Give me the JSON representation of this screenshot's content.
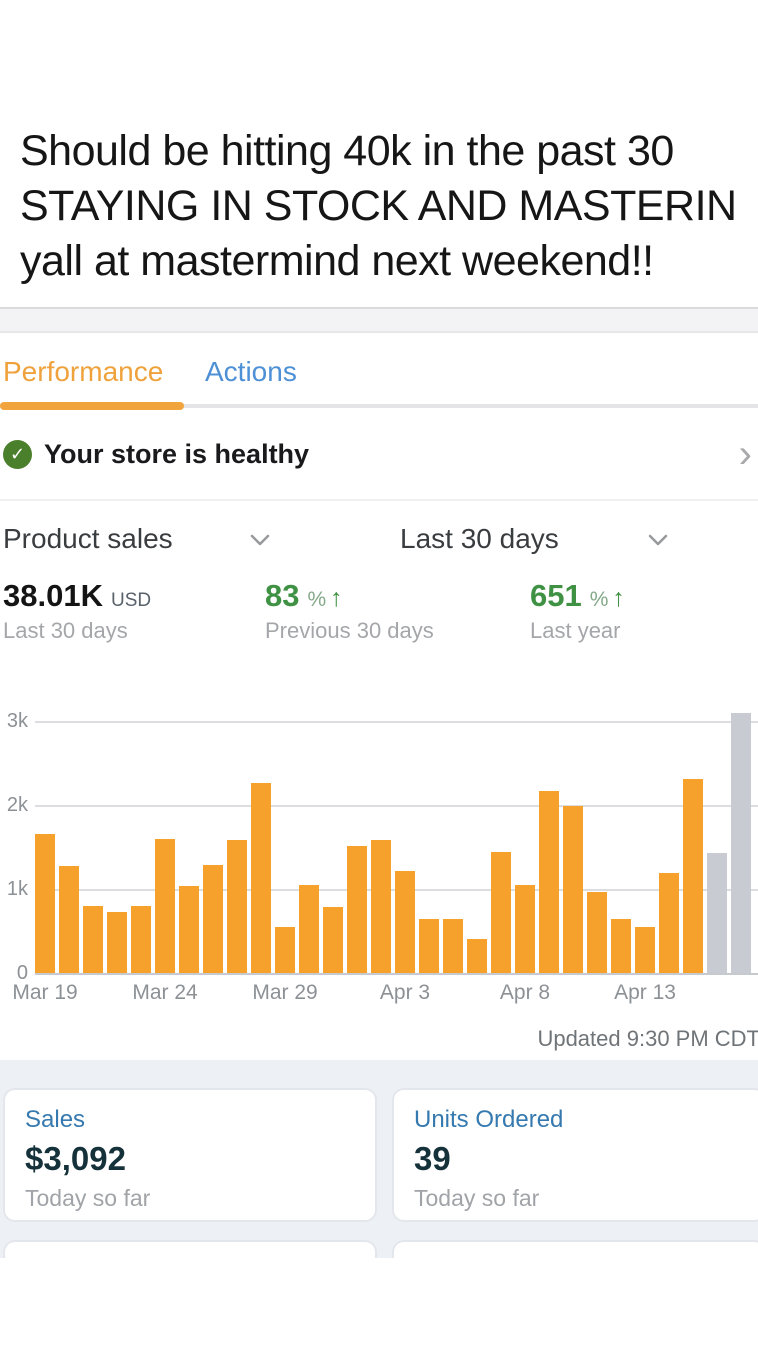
{
  "story": {
    "lines": [
      "Should be hitting 40k in the past 30",
      "STAYING IN STOCK AND MASTERIN",
      "yall at mastermind next weekend!!"
    ]
  },
  "tabs": [
    {
      "label": "Performance",
      "active": true
    },
    {
      "label": "Actions",
      "active": false
    }
  ],
  "health": {
    "label": "Your store is healthy",
    "check_glyph": "✓",
    "chevron_glyph": "›"
  },
  "filters": {
    "metric": "Product sales",
    "range": "Last 30 days"
  },
  "stats": {
    "primary": {
      "value": "38.01K",
      "unit": "USD",
      "caption": "Last 30 days"
    },
    "vs_previous": {
      "value": "83",
      "unit": "%",
      "arrow": "↑",
      "caption": "Previous 30 days"
    },
    "vs_last_year": {
      "value": "651",
      "unit": "%",
      "arrow": "↑",
      "caption": "Last year"
    }
  },
  "chart_data": {
    "type": "bar",
    "title": "Product sales, last 30 days (USD)",
    "x": [
      "Mar 19",
      "Mar 20",
      "Mar 21",
      "Mar 22",
      "Mar 23",
      "Mar 24",
      "Mar 25",
      "Mar 26",
      "Mar 27",
      "Mar 28",
      "Mar 29",
      "Mar 30",
      "Mar 31",
      "Apr 1",
      "Apr 2",
      "Apr 3",
      "Apr 4",
      "Apr 5",
      "Apr 6",
      "Apr 7",
      "Apr 8",
      "Apr 9",
      "Apr 10",
      "Apr 11",
      "Apr 12",
      "Apr 13",
      "Apr 14",
      "Apr 15",
      "Apr 16",
      "Apr 17"
    ],
    "values": [
      1650,
      1270,
      800,
      730,
      800,
      1600,
      1040,
      1290,
      1580,
      2260,
      550,
      1050,
      780,
      1510,
      1580,
      1210,
      640,
      640,
      400,
      1440,
      1050,
      2170,
      1990,
      970,
      640,
      550,
      1190,
      2310,
      1430,
      3090
    ],
    "muted_from_index": 28,
    "bar_color": "#f5a12b",
    "muted_bar_color": "#c8ccd2",
    "ylim": [
      0,
      3000
    ],
    "ytick_values": [
      3000,
      2000,
      1000,
      0
    ],
    "ytick_labels": [
      "3k",
      "2k",
      "1k",
      "0"
    ],
    "xtick_indices": [
      0,
      5,
      10,
      15,
      20,
      25
    ],
    "xtick_labels": [
      "Mar 19",
      "Mar 24",
      "Mar 29",
      "Apr 3",
      "Apr 8",
      "Apr 13"
    ],
    "grid": true,
    "legend": false
  },
  "updated_label": "Updated 9:30 PM CDT",
  "cards": [
    {
      "title": "Sales",
      "value": "$3,092",
      "caption": "Today so far"
    },
    {
      "title": "Units Ordered",
      "value": "39",
      "caption": "Today so far"
    }
  ],
  "colors": {
    "accent_orange": "#f2a43c",
    "link_blue": "#4d90d5",
    "card_title_blue": "#3579af",
    "positive_green": "#3f9144",
    "health_badge_green": "#4a7f2b",
    "bar_orange": "#f5a12b",
    "bar_muted_gray": "#c8ccd2",
    "section_bg_gray": "#edf0f4"
  }
}
